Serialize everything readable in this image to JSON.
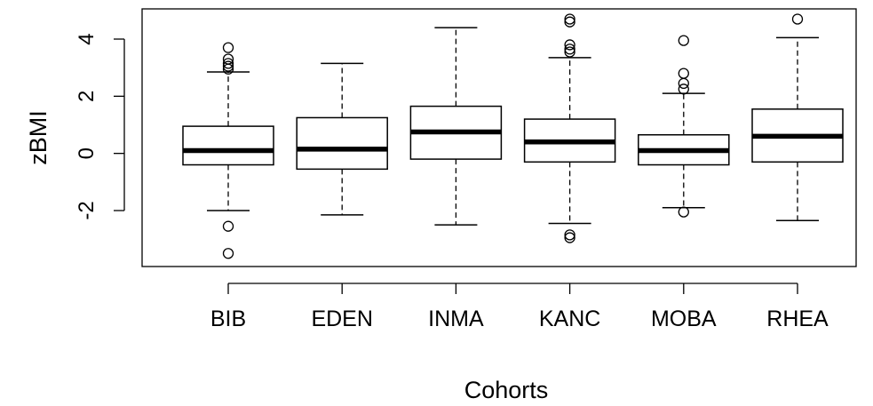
{
  "chart_data": {
    "type": "boxplot",
    "xlabel": "Cohorts",
    "ylabel": "zBMI",
    "ylim": [
      -3.9,
      5.0
    ],
    "yticks": [
      -2,
      0,
      2,
      4
    ],
    "ytick_labels": [
      "-2",
      "0",
      "2",
      "4"
    ],
    "grid": false,
    "categories": [
      "BIB",
      "EDEN",
      "INMA",
      "KANC",
      "MOBA",
      "RHEA"
    ],
    "boxes": [
      {
        "category": "BIB",
        "whisker_low": -2.0,
        "q1": -0.4,
        "median": 0.1,
        "q3": 0.95,
        "whisker_high": 2.85,
        "outliers": [
          -3.5,
          -2.55,
          2.95,
          3.05,
          3.15,
          3.3,
          3.7
        ]
      },
      {
        "category": "EDEN",
        "whisker_low": -2.15,
        "q1": -0.55,
        "median": 0.15,
        "q3": 1.25,
        "whisker_high": 3.15,
        "outliers": []
      },
      {
        "category": "INMA",
        "whisker_low": -2.5,
        "q1": -0.2,
        "median": 0.75,
        "q3": 1.65,
        "whisker_high": 4.4,
        "outliers": []
      },
      {
        "category": "KANC",
        "whisker_low": -2.45,
        "q1": -0.3,
        "median": 0.4,
        "q3": 1.2,
        "whisker_high": 3.35,
        "outliers": [
          -2.95,
          -2.85,
          3.55,
          3.65,
          3.8,
          4.6,
          4.7
        ]
      },
      {
        "category": "MOBA",
        "whisker_low": -1.9,
        "q1": -0.4,
        "median": 0.1,
        "q3": 0.65,
        "whisker_high": 2.1,
        "outliers": [
          -2.05,
          2.25,
          2.45,
          2.8,
          3.95
        ]
      },
      {
        "category": "RHEA",
        "whisker_low": -2.35,
        "q1": -0.3,
        "median": 0.6,
        "q3": 1.55,
        "whisker_high": 4.05,
        "outliers": [
          4.7
        ]
      }
    ]
  }
}
